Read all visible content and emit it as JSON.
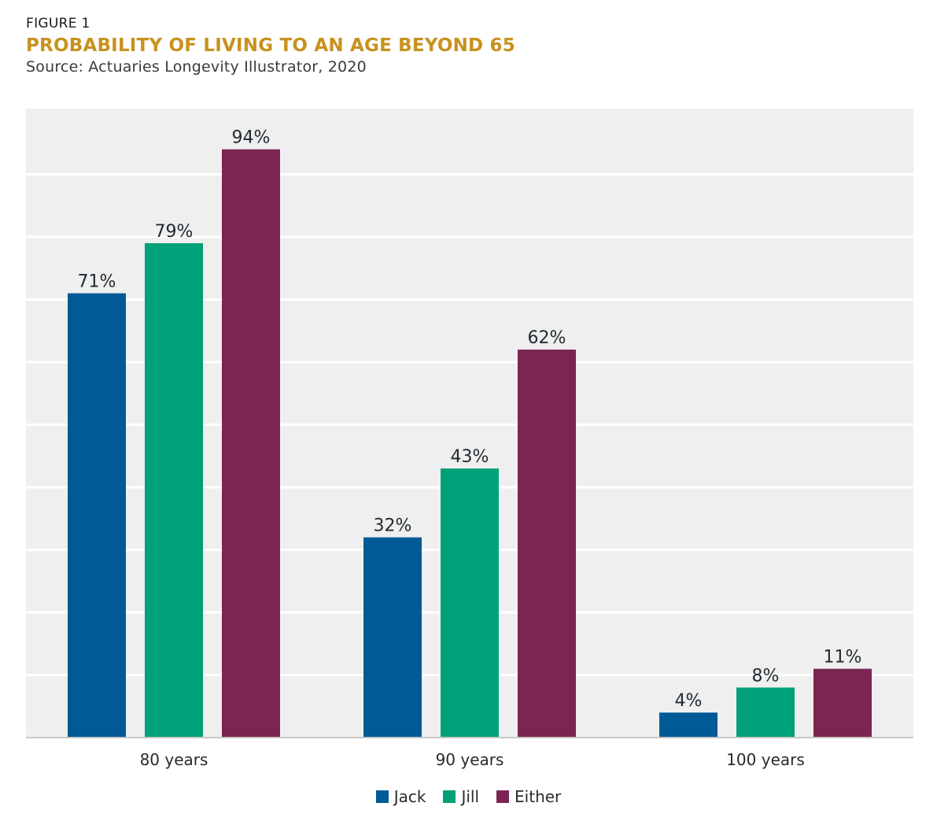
{
  "header": {
    "figure_label": "FIGURE 1",
    "title": "PROBABILITY OF LIVING TO AN AGE BEYOND 65",
    "source": "Source: Actuaries Longevity Illustrator, 2020"
  },
  "colors": {
    "Jack": "#005a96",
    "Jill": "#00a078",
    "Either": "#7a2552",
    "plot_background": "#efefef",
    "gridline": "#ffffff",
    "title": "#c8911e"
  },
  "chart_data": {
    "type": "bar",
    "title": "PROBABILITY OF LIVING TO AN AGE BEYOND 65",
    "xlabel": "",
    "ylabel": "",
    "categories": [
      "80 years",
      "90 years",
      "100 years"
    ],
    "series": [
      {
        "name": "Jack",
        "values": [
          71,
          32,
          4
        ],
        "labels": [
          "71%",
          "32%",
          "4%"
        ]
      },
      {
        "name": "Jill",
        "values": [
          79,
          43,
          8
        ],
        "labels": [
          "79%",
          "43%",
          "8%"
        ]
      },
      {
        "name": "Either",
        "values": [
          94,
          62,
          11
        ],
        "labels": [
          "94%",
          "62%",
          "11%"
        ]
      }
    ],
    "ylim": [
      0,
      100
    ],
    "grid": true,
    "legend": "bottom-center"
  }
}
